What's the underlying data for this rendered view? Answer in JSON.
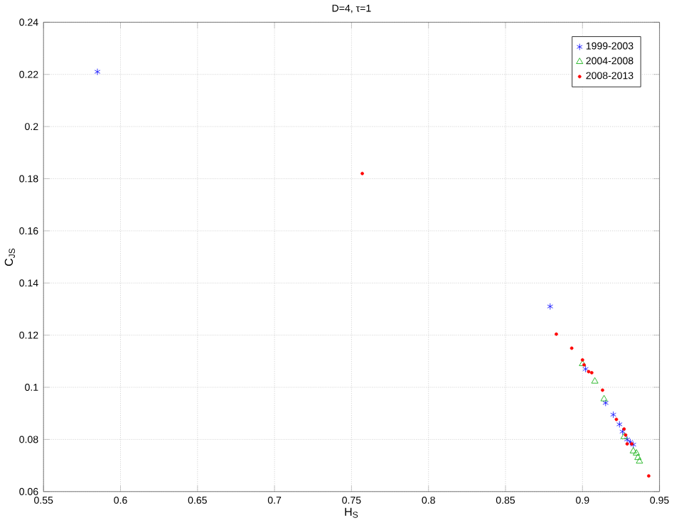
{
  "chart_data": {
    "type": "scatter",
    "title": "D=4, τ=1",
    "xlabel": "H$_{S}$",
    "ylabel": "C$_{JS}$",
    "xlim": [
      0.55,
      0.95
    ],
    "ylim": [
      0.06,
      0.24
    ],
    "xticks": [
      0.55,
      0.6,
      0.65,
      0.7,
      0.75,
      0.8,
      0.85,
      0.9,
      0.95
    ],
    "yticks": [
      0.06,
      0.08,
      0.1,
      0.12,
      0.14,
      0.16,
      0.18,
      0.2,
      0.22,
      0.24
    ],
    "grid": true,
    "legend": "top right",
    "series": [
      {
        "name": "1999-2003",
        "color": "#0000ff",
        "marker": "cross",
        "x": [
          0.585,
          0.879,
          0.902,
          0.915,
          0.92,
          0.924,
          0.926,
          0.929,
          0.931,
          0.933
        ],
        "values": [
          0.221,
          0.131,
          0.107,
          0.094,
          0.0895,
          0.0858,
          0.083,
          0.08,
          0.079,
          0.078
        ]
      },
      {
        "name": "2004-2008",
        "color": "#00aa00",
        "marker": "triangle",
        "x": [
          0.9,
          0.908,
          0.914,
          0.927,
          0.933,
          0.935,
          0.936,
          0.937
        ],
        "values": [
          0.109,
          0.1023,
          0.0955,
          0.081,
          0.0755,
          0.0747,
          0.073,
          0.0716
        ]
      },
      {
        "name": "2008-2013",
        "color": "#ff0000",
        "marker": "circle",
        "x": [
          0.757,
          0.883,
          0.893,
          0.9,
          0.901,
          0.904,
          0.906,
          0.913,
          0.922,
          0.927,
          0.928,
          0.929,
          0.932,
          0.943
        ],
        "values": [
          0.182,
          0.1204,
          0.115,
          0.1105,
          0.1086,
          0.106,
          0.1056,
          0.0989,
          0.0877,
          0.084,
          0.0817,
          0.0783,
          0.0783,
          0.066
        ]
      }
    ]
  }
}
